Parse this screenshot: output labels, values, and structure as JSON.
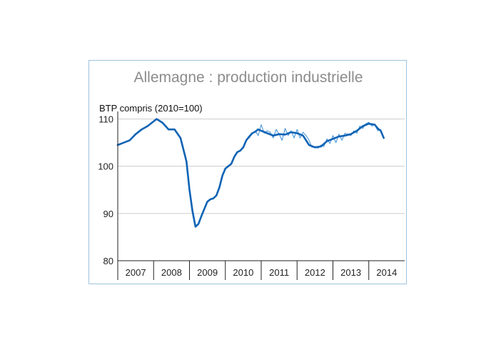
{
  "chart_data": {
    "type": "line",
    "title": "Allemagne : production industrielle",
    "subtitle": "BTP compris (2010=100)",
    "xlabel": "",
    "ylabel": "",
    "x_range": [
      "2007-01",
      "2014-12"
    ],
    "ylim": [
      80,
      111
    ],
    "yticks": [
      80,
      90,
      100,
      110
    ],
    "xtick_labels": [
      "2007",
      "2008",
      "2009",
      "2010",
      "2011",
      "2012",
      "2013",
      "2014"
    ],
    "grid": "horizontal",
    "colors": {
      "trend": "#0e63b4",
      "monthly": "#3d8fd6",
      "grid": "#cccccc",
      "axis": "#222222"
    },
    "series": [
      {
        "role": "trend",
        "x": [
          "2007-01",
          "2007-03",
          "2007-05",
          "2007-07",
          "2007-09",
          "2007-11",
          "2008-01",
          "2008-02",
          "2008-04",
          "2008-06",
          "2008-08",
          "2008-10",
          "2008-12",
          "2009-01",
          "2009-02",
          "2009-03",
          "2009-04",
          "2009-05",
          "2009-06",
          "2009-07",
          "2009-08",
          "2009-09",
          "2009-10",
          "2009-11",
          "2009-12",
          "2010-01",
          "2010-02",
          "2010-03",
          "2010-04",
          "2010-05",
          "2010-06",
          "2010-07",
          "2010-08",
          "2010-09",
          "2010-10",
          "2010-11",
          "2010-12",
          "2011-01",
          "2011-03",
          "2011-05",
          "2011-07",
          "2011-09",
          "2011-11",
          "2012-01",
          "2012-03",
          "2012-05",
          "2012-07",
          "2012-09",
          "2012-11",
          "2013-01",
          "2013-03",
          "2013-05",
          "2013-07",
          "2013-09",
          "2013-11",
          "2014-01",
          "2014-03",
          "2014-04",
          "2014-05",
          "2014-06"
        ],
        "y": [
          104.5,
          105.0,
          105.5,
          106.8,
          107.8,
          108.5,
          109.5,
          110.0,
          109.2,
          107.8,
          107.8,
          106.0,
          101.0,
          95.0,
          90.5,
          87.2,
          87.8,
          89.5,
          91.0,
          92.5,
          93.0,
          93.2,
          93.8,
          95.5,
          98.0,
          99.5,
          100.0,
          100.5,
          102.0,
          103.0,
          103.3,
          104.0,
          105.5,
          106.3,
          107.0,
          107.3,
          107.8,
          107.5,
          107.0,
          106.5,
          106.8,
          106.7,
          107.2,
          107.0,
          106.5,
          104.5,
          104.0,
          104.2,
          105.3,
          105.8,
          106.3,
          106.5,
          106.8,
          107.5,
          108.5,
          109.0,
          108.8,
          108.0,
          107.5,
          106.0
        ]
      },
      {
        "role": "monthly",
        "x": [
          "2010-09",
          "2010-10",
          "2010-11",
          "2010-12",
          "2011-01",
          "2011-02",
          "2011-03",
          "2011-04",
          "2011-05",
          "2011-06",
          "2011-07",
          "2011-08",
          "2011-09",
          "2011-10",
          "2011-11",
          "2011-12",
          "2012-01",
          "2012-02",
          "2012-03",
          "2012-04",
          "2012-05",
          "2012-06",
          "2012-07",
          "2012-08",
          "2012-09",
          "2012-10",
          "2012-11",
          "2012-12",
          "2013-01",
          "2013-02",
          "2013-03",
          "2013-04",
          "2013-05",
          "2013-06",
          "2013-07",
          "2013-08",
          "2013-09",
          "2013-10",
          "2013-11",
          "2013-12",
          "2014-01",
          "2014-02",
          "2014-03",
          "2014-04",
          "2014-05",
          "2014-06"
        ],
        "y": [
          106.0,
          107.0,
          107.5,
          106.5,
          108.8,
          107.0,
          107.5,
          107.2,
          106.0,
          107.8,
          106.8,
          105.5,
          108.0,
          106.5,
          107.5,
          106.0,
          107.8,
          106.0,
          107.2,
          106.5,
          105.5,
          104.0,
          104.2,
          103.8,
          104.5,
          104.2,
          105.8,
          104.8,
          106.5,
          105.0,
          106.8,
          105.5,
          107.0,
          106.8,
          106.5,
          107.5,
          107.0,
          108.5,
          108.0,
          109.0,
          109.3,
          108.5,
          108.8,
          107.5,
          107.8,
          106.0
        ]
      }
    ]
  }
}
